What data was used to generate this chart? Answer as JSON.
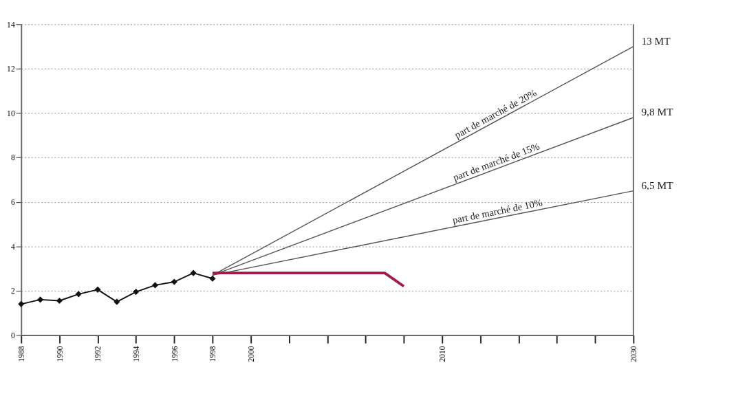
{
  "chart_data": {
    "type": "line",
    "categories": [
      "1988",
      null,
      "1990",
      null,
      "1992",
      null,
      "1994",
      null,
      "1996",
      null,
      "1998",
      null,
      "2000",
      null,
      null,
      null,
      null,
      null,
      null,
      null,
      null,
      null,
      "2010",
      null,
      null,
      null,
      null,
      null,
      null,
      null,
      null,
      null,
      "2030"
    ],
    "series": [
      {
        "color": "#111111",
        "marker": "diamond",
        "values": [
          1.4,
          1.6,
          1.55,
          1.85,
          2.05,
          1.5,
          1.95,
          2.25,
          2.4,
          2.8,
          2.55,
          null,
          null,
          null,
          null,
          null,
          null,
          null,
          null,
          null,
          null,
          null,
          null,
          null,
          null,
          null,
          null,
          null,
          null,
          null,
          null,
          null,
          null
        ]
      },
      {
        "name": "part de marché de 20%",
        "color": "#555555",
        "values": [
          null,
          null,
          null,
          null,
          null,
          null,
          null,
          null,
          null,
          null,
          2.7,
          null,
          null,
          null,
          null,
          null,
          null,
          null,
          null,
          null,
          null,
          null,
          null,
          null,
          null,
          null,
          null,
          null,
          null,
          null,
          null,
          null,
          13
        ]
      },
      {
        "name": "part de marché de 15%",
        "color": "#555555",
        "values": [
          null,
          null,
          null,
          null,
          null,
          null,
          null,
          null,
          null,
          null,
          2.7,
          null,
          null,
          null,
          null,
          null,
          null,
          null,
          null,
          null,
          null,
          null,
          null,
          null,
          null,
          null,
          null,
          null,
          null,
          null,
          null,
          null,
          9.8
        ]
      },
      {
        "name": "part de marché de 10%",
        "color": "#555555",
        "values": [
          null,
          null,
          null,
          null,
          null,
          null,
          null,
          null,
          null,
          null,
          2.7,
          null,
          null,
          null,
          null,
          null,
          null,
          null,
          null,
          null,
          null,
          null,
          null,
          null,
          null,
          null,
          null,
          null,
          null,
          null,
          null,
          null,
          6.5
        ]
      },
      {
        "color": "#a3194a",
        "values": [
          null,
          null,
          null,
          null,
          null,
          null,
          null,
          null,
          null,
          null,
          2.8,
          null,
          null,
          null,
          null,
          null,
          null,
          null,
          null,
          2.8,
          2.2,
          null,
          null,
          null,
          null,
          null,
          null,
          null,
          null,
          null,
          null,
          null,
          null
        ]
      }
    ],
    "ylim": [
      0,
      14
    ],
    "yticks": [
      0,
      2,
      4,
      6,
      8,
      10,
      12,
      14
    ],
    "grid": "y",
    "ref_lines": [
      {
        "axis": "x",
        "value": "2030"
      }
    ],
    "annotations": [
      {
        "text": "13 MT",
        "x": "2030",
        "y": 13
      },
      {
        "text": "9,8 MT",
        "x": "2030",
        "y": 9.8
      },
      {
        "text": "6,5 MT",
        "x": "2030",
        "y": 6.5
      }
    ]
  }
}
